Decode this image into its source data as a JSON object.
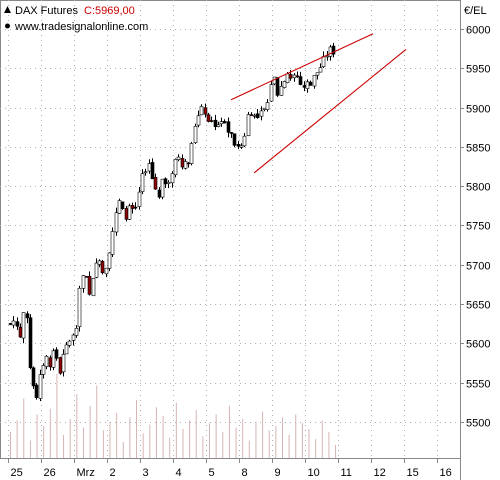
{
  "header": {
    "instrument": "DAX Futures",
    "close_label": "C:",
    "close_value": "5969,00",
    "source": "www.tradesignalonline.com",
    "unit": "€/EL"
  },
  "colors": {
    "candle_up": "#ffffff",
    "candle_down": "#000000",
    "candle_down_alt": "#8b0000",
    "trendline": "#cc0000",
    "volume": "#d4b4b4",
    "grid": "#b0b0b0",
    "close_text": "#cc0000"
  },
  "chart_data": {
    "type": "candlestick",
    "y_ticks": [
      5500,
      5550,
      5600,
      5650,
      5700,
      5750,
      5800,
      5850,
      5900,
      5950,
      6000
    ],
    "y_tick_labels": [
      "5500",
      "5550",
      "5600",
      "5650",
      "5700",
      "5750",
      "5800",
      "5850",
      "5900",
      "5950",
      "6000"
    ],
    "ylim": [
      5465,
      6030
    ],
    "x_labels": [
      "25",
      "26",
      "Mrz",
      "2",
      "3",
      "4",
      "5",
      "8",
      "9",
      "10",
      "11",
      "12",
      "15",
      "16"
    ],
    "x_sessions": 14,
    "price_path": [
      [
        0.0,
        5625
      ],
      [
        0.15,
        5630
      ],
      [
        0.3,
        5608
      ],
      [
        0.45,
        5655
      ],
      [
        0.6,
        5570
      ],
      [
        0.75,
        5525
      ],
      [
        0.9,
        5555
      ],
      [
        1.05,
        5585
      ],
      [
        1.2,
        5575
      ],
      [
        1.35,
        5590
      ],
      [
        1.5,
        5565
      ],
      [
        1.65,
        5590
      ],
      [
        1.8,
        5605
      ],
      [
        1.95,
        5610
      ],
      [
        2.05,
        5640
      ],
      [
        2.1,
        5675
      ],
      [
        2.25,
        5690
      ],
      [
        2.4,
        5660
      ],
      [
        2.55,
        5700
      ],
      [
        2.7,
        5705
      ],
      [
        2.85,
        5690
      ],
      [
        3.0,
        5720
      ],
      [
        3.15,
        5755
      ],
      [
        3.3,
        5780
      ],
      [
        3.45,
        5760
      ],
      [
        3.6,
        5770
      ],
      [
        3.75,
        5765
      ],
      [
        3.9,
        5790
      ],
      [
        4.05,
        5820
      ],
      [
        4.2,
        5830
      ],
      [
        4.35,
        5800
      ],
      [
        4.5,
        5790
      ],
      [
        4.65,
        5810
      ],
      [
        4.8,
        5800
      ],
      [
        4.95,
        5830
      ],
      [
        5.1,
        5840
      ],
      [
        5.25,
        5825
      ],
      [
        5.4,
        5830
      ],
      [
        5.55,
        5875
      ],
      [
        5.7,
        5888
      ],
      [
        5.85,
        5900
      ],
      [
        6.0,
        5885
      ],
      [
        6.15,
        5880
      ],
      [
        6.3,
        5880
      ],
      [
        6.45,
        5885
      ],
      [
        6.6,
        5870
      ],
      [
        6.75,
        5860
      ],
      [
        6.9,
        5845
      ],
      [
        7.05,
        5855
      ],
      [
        7.2,
        5890
      ],
      [
        7.35,
        5900
      ],
      [
        7.5,
        5885
      ],
      [
        7.65,
        5895
      ],
      [
        7.8,
        5905
      ],
      [
        7.95,
        5945
      ],
      [
        8.1,
        5920
      ],
      [
        8.25,
        5930
      ],
      [
        8.4,
        5945
      ],
      [
        8.55,
        5935
      ],
      [
        8.7,
        5940
      ],
      [
        8.85,
        5925
      ],
      [
        9.0,
        5930
      ],
      [
        9.15,
        5935
      ],
      [
        9.3,
        5945
      ],
      [
        9.45,
        5955
      ],
      [
        9.6,
        5968
      ],
      [
        9.75,
        5975
      ],
      [
        9.85,
        5969
      ]
    ],
    "trendlines": [
      {
        "x": [
          6.7,
          11.0
        ],
        "y": [
          5910,
          5994
        ]
      },
      {
        "x": [
          7.4,
          12.0
        ],
        "y": [
          5817,
          5974
        ]
      }
    ],
    "volume": {
      "axis_max": 62000,
      "values": [
        18000,
        26000,
        41000,
        12000,
        30000,
        22000,
        34000,
        58000,
        16000,
        27000,
        44000,
        21000,
        36000,
        50000,
        19000,
        25000,
        31000,
        11000,
        28000,
        40000,
        17000,
        23000,
        35000,
        29000,
        14000,
        38000,
        20000,
        26000,
        33000,
        15000,
        24000,
        30000,
        18000,
        36000,
        21000,
        27000,
        12000,
        25000,
        32000,
        19000,
        22000,
        28000,
        16000,
        30000,
        24000,
        20000,
        13000,
        26000,
        18000,
        9000
      ]
    }
  }
}
